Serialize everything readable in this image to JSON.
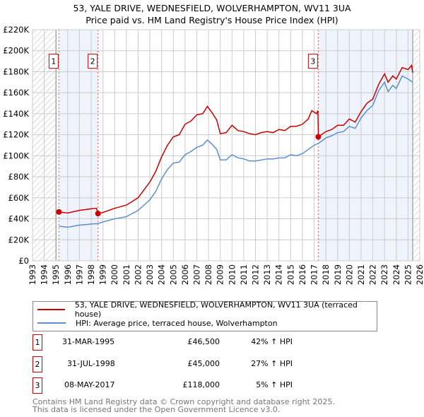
{
  "title_line1": "53, YALE DRIVE, WEDNESFIELD, WOLVERHAMPTON, WV11 3UA",
  "title_line2": "Price paid vs. HM Land Registry's House Price Index (HPI)",
  "chart_data": {
    "type": "line",
    "title": "53, YALE DRIVE, WEDNESFIELD, WOLVERHAMPTON, WV11 3UA — Price paid vs. HM Land Registry's House Price Index (HPI)",
    "xlim": [
      1993,
      2026
    ],
    "ylim": [
      0,
      220000
    ],
    "x_ticks": [
      "1993",
      "1994",
      "1995",
      "1996",
      "1997",
      "1998",
      "1999",
      "2000",
      "2001",
      "2002",
      "2003",
      "2004",
      "2005",
      "2006",
      "2007",
      "2008",
      "2009",
      "2010",
      "2011",
      "2012",
      "2013",
      "2014",
      "2015",
      "2016",
      "2017",
      "2018",
      "2019",
      "2020",
      "2021",
      "2022",
      "2023",
      "2024",
      "2025",
      "2026"
    ],
    "y_ticks": [
      {
        "v": 0,
        "label": "£0"
      },
      {
        "v": 20000,
        "label": "£20K"
      },
      {
        "v": 40000,
        "label": "£40K"
      },
      {
        "v": 60000,
        "label": "£60K"
      },
      {
        "v": 80000,
        "label": "£80K"
      },
      {
        "v": 100000,
        "label": "£100K"
      },
      {
        "v": 120000,
        "label": "£120K"
      },
      {
        "v": 140000,
        "label": "£140K"
      },
      {
        "v": 160000,
        "label": "£160K"
      },
      {
        "v": 180000,
        "label": "£180K"
      },
      {
        "v": 200000,
        "label": "£200K"
      },
      {
        "v": 220000,
        "label": "£220K"
      }
    ],
    "grid": true,
    "hatched_ranges": [
      [
        1993,
        1995.0
      ],
      [
        2025.4,
        2026
      ]
    ],
    "shaded_ranges": [
      [
        1995.25,
        1998.58
      ],
      [
        2017.35,
        2025.4
      ]
    ],
    "colors": {
      "property": "#cc0000",
      "hpi": "#5b8fd0",
      "shade": "#eef3fc"
    },
    "series": [
      {
        "name": "53, YALE DRIVE, WEDNESFIELD, WOLVERHAMPTON, WV11 3UA (terraced house)",
        "color": "#cc0000",
        "x": [
          1995.25,
          1996,
          1997,
          1998,
          1998.45,
          1998.58,
          1999,
          2000,
          2001,
          2002,
          2003,
          2003.5,
          2004,
          2004.5,
          2005,
          2005.5,
          2006,
          2006.5,
          2007,
          2007.5,
          2007.9,
          2008.3,
          2008.7,
          2009,
          2009.5,
          2010,
          2010.5,
          2011,
          2011.5,
          2012,
          2012.5,
          2013,
          2013.5,
          2014,
          2014.5,
          2015,
          2015.5,
          2016,
          2016.5,
          2016.8,
          2017.2,
          2017.32,
          2017.36,
          2018,
          2018.5,
          2019,
          2019.5,
          2020,
          2020.5,
          2021,
          2021.5,
          2022,
          2022.5,
          2023,
          2023.3,
          2023.7,
          2024,
          2024.5,
          2025,
          2025.3,
          2025.4
        ],
        "y": [
          46500,
          45500,
          48000,
          49500,
          50000,
          45000,
          46000,
          50000,
          53000,
          60000,
          75000,
          85000,
          99000,
          110000,
          118000,
          120000,
          130000,
          133000,
          139000,
          140000,
          147000,
          141000,
          134000,
          121000,
          122000,
          129000,
          124000,
          123000,
          121000,
          120000,
          122000,
          123000,
          122000,
          125000,
          124000,
          128000,
          128000,
          130000,
          135000,
          143000,
          140000,
          143000,
          118000,
          123000,
          125000,
          129000,
          129000,
          135000,
          132000,
          142000,
          150000,
          154000,
          168000,
          178000,
          170000,
          176000,
          173000,
          184000,
          182000,
          186000,
          179000
        ]
      },
      {
        "name": "HPI: Average price, terraced house, Wolverhampton",
        "color": "#5b8fd0",
        "x": [
          1995.25,
          1996,
          1997,
          1998,
          1998.6,
          1999,
          2000,
          2001,
          2002,
          2003,
          2003.5,
          2004,
          2004.5,
          2005,
          2005.5,
          2006,
          2006.5,
          2007,
          2007.5,
          2007.9,
          2008.3,
          2008.7,
          2009,
          2009.5,
          2010,
          2010.5,
          2011,
          2011.5,
          2012,
          2012.5,
          2013,
          2013.5,
          2014,
          2014.5,
          2015,
          2015.5,
          2016,
          2016.5,
          2017,
          2017.4,
          2018,
          2018.5,
          2019,
          2019.5,
          2020,
          2020.5,
          2021,
          2021.5,
          2022,
          2022.5,
          2023,
          2023.3,
          2023.7,
          2024,
          2024.5,
          2025,
          2025.4
        ],
        "y": [
          33000,
          32000,
          34000,
          35000,
          35500,
          37000,
          40000,
          42000,
          48000,
          58000,
          66000,
          78000,
          87000,
          93000,
          94000,
          101000,
          104000,
          108000,
          110000,
          115000,
          111000,
          106000,
          96000,
          96000,
          101000,
          98000,
          97000,
          95000,
          95000,
          96000,
          97000,
          97000,
          98000,
          98000,
          101000,
          100000,
          102000,
          106000,
          110000,
          112000,
          117000,
          119000,
          122000,
          123000,
          128000,
          126000,
          136000,
          143000,
          148000,
          162000,
          170000,
          161000,
          167000,
          164000,
          176000,
          173000,
          170000
        ]
      }
    ],
    "sales": [
      {
        "label": "1",
        "x": 1995.25,
        "y": 46500
      },
      {
        "label": "2",
        "x": 1998.58,
        "y": 45000
      },
      {
        "label": "3",
        "x": 2017.35,
        "y": 118000
      }
    ]
  },
  "legend": [
    "53, YALE DRIVE, WEDNESFIELD, WOLVERHAMPTON, WV11 3UA (terraced house)",
    "HPI: Average price, terraced house, Wolverhampton"
  ],
  "transactions": [
    {
      "num": "1",
      "date": "31-MAR-1995",
      "price": "£46,500",
      "hpi": "42% ↑ HPI"
    },
    {
      "num": "2",
      "date": "31-JUL-1998",
      "price": "£45,000",
      "hpi": "27% ↑ HPI"
    },
    {
      "num": "3",
      "date": "08-MAY-2017",
      "price": "£118,000",
      "hpi": "5% ↑ HPI"
    }
  ],
  "footer_line1": "Contains HM Land Registry data © Crown copyright and database right 2025.",
  "footer_line2": "This data is licensed under the Open Government Licence v3.0."
}
